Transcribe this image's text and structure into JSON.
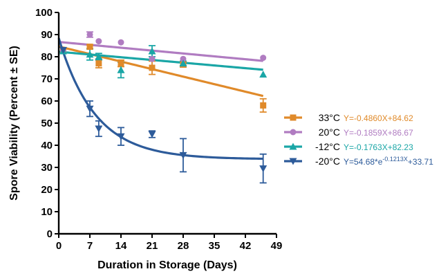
{
  "chart_data": {
    "type": "scatter",
    "xlabel": "Duration in Storage (Days)",
    "ylabel": "Spore Viability (Percent ± SE)",
    "xlim": [
      0,
      49
    ],
    "ylim": [
      0,
      100
    ],
    "x_ticks": [
      0,
      7,
      14,
      21,
      28,
      35,
      42,
      49
    ],
    "y_ticks": [
      0,
      10,
      20,
      30,
      40,
      50,
      60,
      70,
      80,
      90,
      100
    ],
    "legend_position": "right",
    "series": [
      {
        "name": "33°C",
        "marker": "square",
        "color": "#e08a2a",
        "fit": "linear",
        "slope": -0.486,
        "intercept": 84.62,
        "eq_parts": [
          "Y=-0.4860X+84.62"
        ],
        "points": [
          {
            "x": 1,
            "y": 82.5,
            "se": 0
          },
          {
            "x": 7,
            "y": 84.5,
            "se": 0.8
          },
          {
            "x": 9,
            "y": 77,
            "se": 2
          },
          {
            "x": 14,
            "y": 77,
            "se": 1.5
          },
          {
            "x": 21,
            "y": 75,
            "se": 3
          },
          {
            "x": 28,
            "y": 76.5,
            "se": 1.2
          },
          {
            "x": 46,
            "y": 58,
            "se": 3
          }
        ]
      },
      {
        "name": "20°C",
        "marker": "circle",
        "color": "#b07cc1",
        "fit": "linear",
        "slope": -0.1859,
        "intercept": 86.67,
        "eq_parts": [
          "Y=-0.1859X+86.67"
        ],
        "points": [
          {
            "x": 1,
            "y": 82.5,
            "se": 0
          },
          {
            "x": 7,
            "y": 90,
            "se": 1.2
          },
          {
            "x": 9,
            "y": 87,
            "se": 0
          },
          {
            "x": 14,
            "y": 86.5,
            "se": 0
          },
          {
            "x": 21,
            "y": 79,
            "se": 0
          },
          {
            "x": 28,
            "y": 79,
            "se": 0
          },
          {
            "x": 46,
            "y": 79.5,
            "se": 0
          }
        ]
      },
      {
        "name": "-12°C",
        "marker": "triangle-up",
        "color": "#1aa6a6",
        "fit": "linear",
        "slope": -0.1763,
        "intercept": 82.23,
        "eq_parts": [
          "Y=-0.1763X+82.23"
        ],
        "points": [
          {
            "x": 1,
            "y": 82.5,
            "se": 0
          },
          {
            "x": 7,
            "y": 81,
            "se": 2.5
          },
          {
            "x": 9,
            "y": 80,
            "se": 1.5
          },
          {
            "x": 14,
            "y": 74,
            "se": 3.5
          },
          {
            "x": 21,
            "y": 82.5,
            "se": 2.5
          },
          {
            "x": 28,
            "y": 77,
            "se": 1
          },
          {
            "x": 46,
            "y": 72,
            "se": 0
          }
        ]
      },
      {
        "name": "-20°C",
        "marker": "triangle-down",
        "color": "#2d5b9a",
        "fit": "exponential",
        "span": 54.68,
        "k": -0.1213,
        "plateau": 33.71,
        "eq_parts": [
          "Y=54.68*e",
          "-0.1213X",
          "+33.71"
        ],
        "points": [
          {
            "x": 1,
            "y": 83,
            "se": 0
          },
          {
            "x": 7,
            "y": 56.5,
            "se": 3.5
          },
          {
            "x": 9,
            "y": 47.5,
            "se": 3.5
          },
          {
            "x": 14,
            "y": 44,
            "se": 4
          },
          {
            "x": 21,
            "y": 45,
            "se": 1.5
          },
          {
            "x": 28,
            "y": 35.5,
            "se": 7.5
          },
          {
            "x": 46,
            "y": 29.5,
            "se": 6.5
          }
        ]
      }
    ]
  }
}
